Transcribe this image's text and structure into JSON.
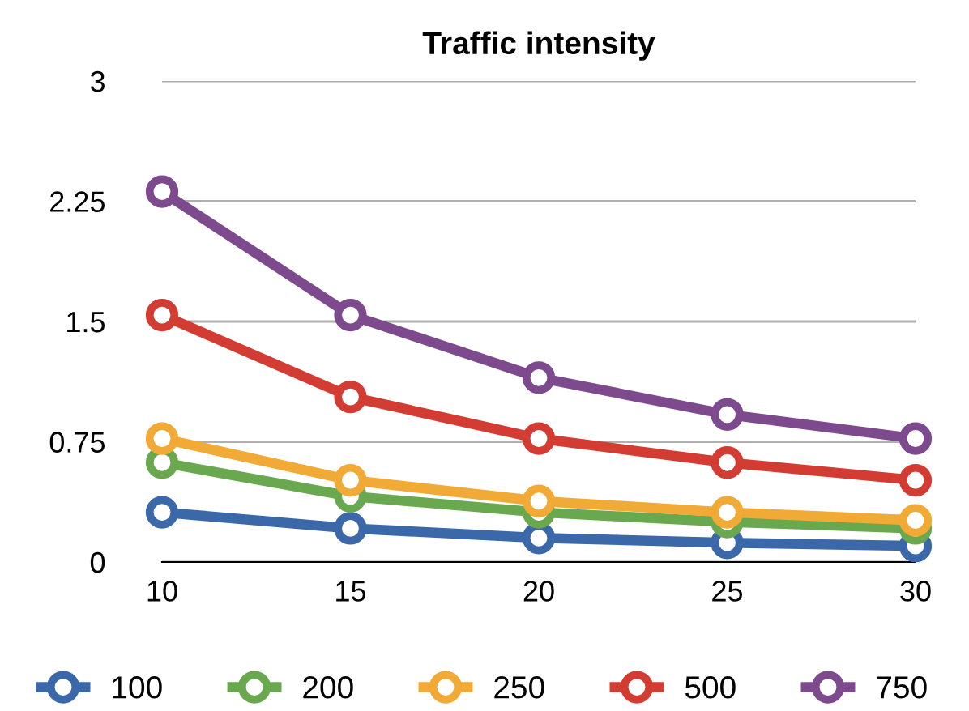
{
  "chart_data": {
    "type": "line",
    "title": "Traffic intensity",
    "x": [
      10,
      15,
      20,
      25,
      30
    ],
    "xlim": [
      10,
      30
    ],
    "xticks": [
      10,
      15,
      20,
      25,
      30
    ],
    "ylim": [
      0,
      3
    ],
    "yticks": [
      0,
      0.75,
      1.5,
      2.25,
      3
    ],
    "grid": "y",
    "legend": "bottom",
    "marker": "circle",
    "line_style": "solid",
    "series": [
      {
        "name": "100",
        "color": "#3a68a8",
        "values": [
          0.31,
          0.21,
          0.15,
          0.12,
          0.1
        ]
      },
      {
        "name": "200",
        "color": "#6aa84f",
        "values": [
          0.62,
          0.41,
          0.31,
          0.25,
          0.21
        ]
      },
      {
        "name": "250",
        "color": "#f0aa35",
        "values": [
          0.77,
          0.51,
          0.38,
          0.31,
          0.26
        ]
      },
      {
        "name": "500",
        "color": "#d23c32",
        "values": [
          1.54,
          1.03,
          0.77,
          0.62,
          0.51
        ]
      },
      {
        "name": "750",
        "color": "#7e4a8e",
        "values": [
          2.31,
          1.54,
          1.15,
          0.92,
          0.77
        ]
      }
    ]
  }
}
